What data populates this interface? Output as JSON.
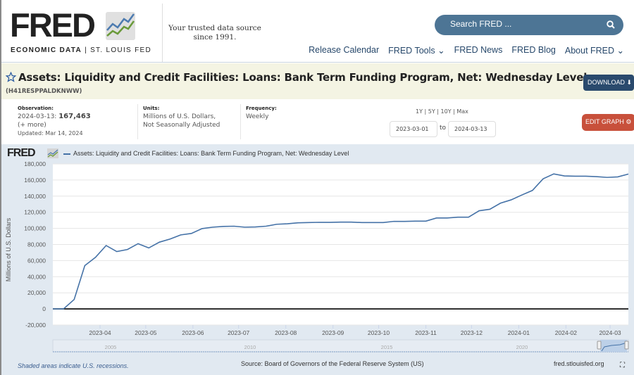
{
  "header": {
    "logo": "FRED",
    "logo_sub_a": "ECONOMIC DATA",
    "logo_sub_sep": "|",
    "logo_sub_b": "ST. LOUIS FED",
    "tagline": "Your trusted data source since 1991.",
    "search_placeholder": "Search FRED ...",
    "nav": [
      "Release Calendar",
      "FRED Tools ⌄",
      "FRED News",
      "FRED Blog",
      "About FRED ⌄"
    ]
  },
  "series": {
    "title": "Assets: Liquidity and Credit Facilities: Loans: Bank Term Funding Program, Net: Wednesday Level",
    "id": "(H41RESPPALDKNWW)",
    "download": "DOWNLOAD"
  },
  "info": {
    "obs_label": "Observation:",
    "obs_date": "2024-03-13:",
    "obs_value": "167,463",
    "more": "(+ more)",
    "updated": "Updated: Mar 14, 2024",
    "units_label": "Units:",
    "units_1": "Millions of U.S. Dollars,",
    "units_2": "Not Seasonally Adjusted",
    "freq_label": "Frequency:",
    "freq": "Weekly",
    "ranges": "1Y | 5Y | 10Y | Max",
    "start": "2023-03-01",
    "to": "to",
    "end": "2024-03-13",
    "edit": "EDIT GRAPH"
  },
  "colors": {
    "line": "#4572a7",
    "accent": "#c8503b",
    "nav": "#27486b"
  },
  "chart_data": {
    "type": "line",
    "legend": "Assets: Liquidity and Credit Facilities: Loans: Bank Term Funding Program, Net: Wednesday Level",
    "ylabel": "Millions of U.S. Dollars",
    "ylim": [
      -20000,
      180000
    ],
    "yticks": [
      -20000,
      0,
      20000,
      40000,
      60000,
      80000,
      100000,
      120000,
      140000,
      160000,
      180000
    ],
    "ytick_labels": [
      "-20,000",
      "0",
      "20,000",
      "40,000",
      "60,000",
      "80,000",
      "100,000",
      "120,000",
      "140,000",
      "160,000",
      "180,000"
    ],
    "xlim": [
      "2023-03-01",
      "2024-03-13"
    ],
    "xticks": [
      "2023-04",
      "2023-05",
      "2023-06",
      "2023-07",
      "2023-08",
      "2023-09",
      "2023-10",
      "2023-11",
      "2023-12",
      "2024-01",
      "2024-02",
      "2024-03"
    ],
    "grid": true,
    "x": [
      "2023-03-01",
      "2023-03-08",
      "2023-03-15",
      "2023-03-22",
      "2023-03-29",
      "2023-04-05",
      "2023-04-12",
      "2023-04-19",
      "2023-04-26",
      "2023-05-03",
      "2023-05-10",
      "2023-05-17",
      "2023-05-24",
      "2023-05-31",
      "2023-06-07",
      "2023-06-14",
      "2023-06-21",
      "2023-06-28",
      "2023-07-05",
      "2023-07-12",
      "2023-07-19",
      "2023-07-26",
      "2023-08-02",
      "2023-08-09",
      "2023-08-16",
      "2023-08-23",
      "2023-08-30",
      "2023-09-06",
      "2023-09-13",
      "2023-09-20",
      "2023-09-27",
      "2023-10-04",
      "2023-10-11",
      "2023-10-18",
      "2023-10-25",
      "2023-11-01",
      "2023-11-08",
      "2023-11-15",
      "2023-11-22",
      "2023-11-29",
      "2023-12-06",
      "2023-12-13",
      "2023-12-20",
      "2023-12-27",
      "2024-01-03",
      "2024-01-10",
      "2024-01-17",
      "2024-01-24",
      "2024-01-31",
      "2024-02-07",
      "2024-02-14",
      "2024-02-21",
      "2024-02-28",
      "2024-03-06",
      "2024-03-13"
    ],
    "values": [
      0,
      0,
      11700,
      53800,
      64000,
      78700,
      71200,
      73800,
      81000,
      75700,
      82900,
      86800,
      91900,
      93700,
      99700,
      101500,
      102400,
      102700,
      101500,
      101800,
      102700,
      105100,
      105700,
      106900,
      107200,
      107500,
      107500,
      107800,
      107800,
      107200,
      107200,
      107200,
      108700,
      108700,
      109000,
      109000,
      112900,
      112900,
      113900,
      113900,
      121900,
      123700,
      131300,
      135400,
      141400,
      147100,
      161500,
      167600,
      165100,
      164800,
      164800,
      164200,
      163300,
      163900,
      167463
    ],
    "navigator_labels": [
      "2005",
      "2010",
      "2015",
      "2020"
    ]
  },
  "footer": {
    "recessions": "Shaded areas indicate U.S. recessions.",
    "source": "Source: Board of Governors of the Federal Reserve System (US)",
    "site": "fred.stlouisfed.org"
  }
}
